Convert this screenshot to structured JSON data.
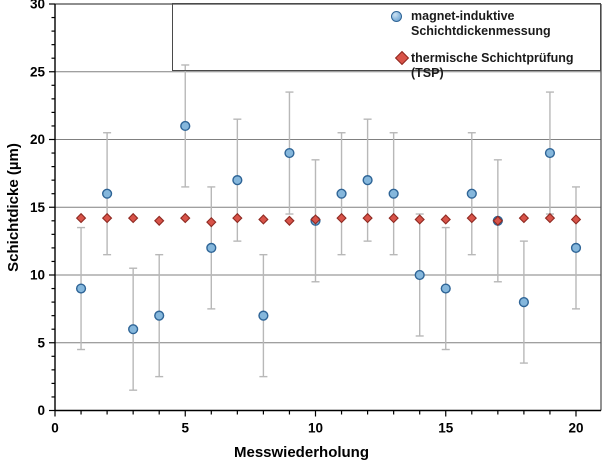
{
  "chart_data": {
    "type": "scatter",
    "title": "",
    "xlabel": "Messwiederholung",
    "ylabel": "Schichtdicke (µm)",
    "xlim": [
      0,
      20.96
    ],
    "ylim": [
      0,
      30
    ],
    "xticks": {
      "labeled": [
        0,
        5,
        10,
        15,
        20
      ],
      "minor_step": 1
    },
    "yticks": {
      "labeled": [
        0,
        5,
        10,
        15,
        20,
        25,
        30
      ],
      "minor_step": 1
    },
    "grid": {
      "horizontal_at": [
        5,
        10,
        15,
        20,
        25
      ],
      "color": "#808080"
    },
    "frame_color": "#4a4a4a",
    "axis_color": "#000000",
    "x": [
      1,
      2,
      3,
      4,
      5,
      6,
      7,
      8,
      9,
      10,
      11,
      12,
      13,
      14,
      15,
      16,
      17,
      18,
      19,
      20
    ],
    "series": [
      {
        "name": "magnet-induktive Schichtdickenmessung",
        "marker": "circle",
        "fill": "#85b7dc",
        "edge": "#2e6496",
        "values": [
          9,
          16,
          6,
          7,
          21,
          12,
          17,
          7,
          19,
          14,
          16,
          17,
          16,
          10,
          9,
          16,
          14,
          8,
          19,
          12
        ],
        "error": 4.5,
        "error_color": "#b8b8b8"
      },
      {
        "name": "thermische Schichtprüfung (TSP)",
        "marker": "diamond",
        "fill": "#d85349",
        "edge": "#8e2a22",
        "values": [
          14.2,
          14.2,
          14.2,
          14.0,
          14.2,
          13.9,
          14.2,
          14.1,
          14.0,
          14.1,
          14.2,
          14.2,
          14.2,
          14.1,
          14.1,
          14.2,
          14.0,
          14.2,
          14.2,
          14.1
        ]
      }
    ],
    "legend": {
      "position": "top-right",
      "border_color": "#4a4a4a"
    }
  }
}
